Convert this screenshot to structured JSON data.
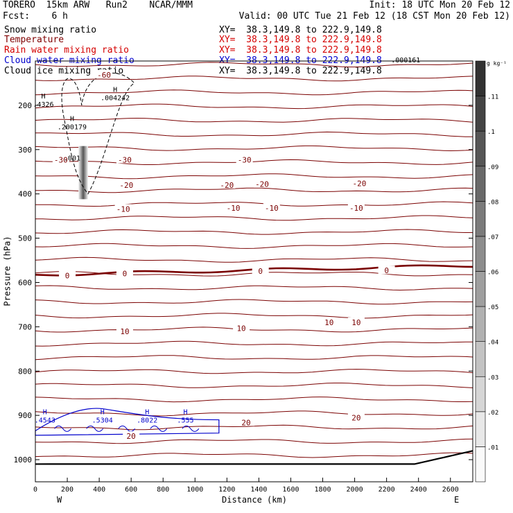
{
  "header": {
    "model": "TORERO  15km ARW   Run2    NCAR/MMM",
    "init": "Init: 18 UTC Mon 20 Feb 12",
    "fcst": "Fcst:    6 h",
    "valid": "Valid: 00 UTC Tue 21 Feb 12 (18 CST Mon 20 Feb 12)",
    "fields": [
      {
        "name": "Snow mixing ratio",
        "color": "#000000"
      },
      {
        "name": "Temperature",
        "color": "#800000"
      },
      {
        "name": "Rain water mixing ratio",
        "color": "#d40000"
      },
      {
        "name": "Cloud water mixing ratio",
        "color": "#0000cc"
      },
      {
        "name": "Cloud ice mixing ratio",
        "color": "#000000"
      }
    ],
    "xy": "XY=  38.3,149.8 to 222.9,149.8"
  },
  "chart_data": {
    "type": "cross-section",
    "xlabel": "Distance (km)",
    "ylabel": "Pressure (hPa)",
    "x_ticks": [
      0,
      200,
      400,
      600,
      800,
      1000,
      1200,
      1400,
      1600,
      1800,
      2000,
      2200,
      2400,
      2600
    ],
    "y_ticks": [
      200,
      300,
      400,
      500,
      600,
      700,
      800,
      900,
      1000
    ],
    "xlim": [
      0,
      2740
    ],
    "ylim": [
      100,
      1050
    ],
    "y_scale": "pressure (inverted)",
    "west_label": "W",
    "east_label": "E",
    "temperature_contours": [
      {
        "label": "-60",
        "p": 127
      },
      {
        "label": "-30",
        "p": 325
      },
      {
        "label": "-20",
        "p": 380
      },
      {
        "label": "-10",
        "p": 435
      },
      {
        "label": "0",
        "p": 570
      },
      {
        "label": "10",
        "p": 690
      },
      {
        "label": "20",
        "p": 935
      }
    ],
    "temperature_labels": [
      {
        "text": "-60",
        "x": 430,
        "p": 131
      },
      {
        "text": "-30",
        "x": 160,
        "p": 323
      },
      {
        "text": "-30",
        "x": 560,
        "p": 323
      },
      {
        "text": "-30",
        "x": 1310,
        "p": 323
      },
      {
        "text": "-20",
        "x": 570,
        "p": 380
      },
      {
        "text": "-20",
        "x": 1200,
        "p": 380
      },
      {
        "text": "-20",
        "x": 1420,
        "p": 378
      },
      {
        "text": "-20",
        "x": 2030,
        "p": 376
      },
      {
        "text": "-10",
        "x": 550,
        "p": 434
      },
      {
        "text": "-10",
        "x": 1240,
        "p": 432
      },
      {
        "text": "-10",
        "x": 1480,
        "p": 432
      },
      {
        "text": "-10",
        "x": 2010,
        "p": 432
      },
      {
        "text": "0",
        "x": 200,
        "p": 584
      },
      {
        "text": "0",
        "x": 560,
        "p": 580
      },
      {
        "text": "0",
        "x": 1410,
        "p": 574
      },
      {
        "text": "0",
        "x": 2200,
        "p": 573
      },
      {
        "text": "10",
        "x": 560,
        "p": 710
      },
      {
        "text": "10",
        "x": 1290,
        "p": 703
      },
      {
        "text": "10",
        "x": 1840,
        "p": 690
      },
      {
        "text": "10",
        "x": 2010,
        "p": 690
      },
      {
        "text": "20",
        "x": 600,
        "p": 947
      },
      {
        "text": "20",
        "x": 1320,
        "p": 916
      },
      {
        "text": "20",
        "x": 2010,
        "p": 905
      }
    ],
    "maxima": [
      {
        "text": "H",
        "value": ".4326",
        "x": 50,
        "p": 197
      },
      {
        "text": "H",
        "value": ".004242",
        "x": 500,
        "p": 182
      },
      {
        "text": "H",
        "value": ".200179",
        "x": 230,
        "p": 248
      },
      {
        "text": "",
        "value": ".001",
        "x": 230,
        "p": 318
      },
      {
        "text": "",
        "value": ".000161",
        "x": 2320,
        "p": 97
      },
      {
        "text": "H",
        "value": ".4543",
        "x": 60,
        "p": 910
      },
      {
        "text": "H",
        "value": ".5304",
        "x": 420,
        "p": 910
      },
      {
        "text": "H",
        "value": ".8022",
        "x": 700,
        "p": 910
      },
      {
        "text": "H",
        "value": ".555",
        "x": 940,
        "p": 910
      }
    ],
    "colorbar": {
      "unit": "g kg⁻¹",
      "levels": [
        ".01",
        ".02",
        ".03",
        ".04",
        ".05",
        ".06",
        ".07",
        ".08",
        ".09",
        ".1",
        ".11"
      ]
    }
  }
}
